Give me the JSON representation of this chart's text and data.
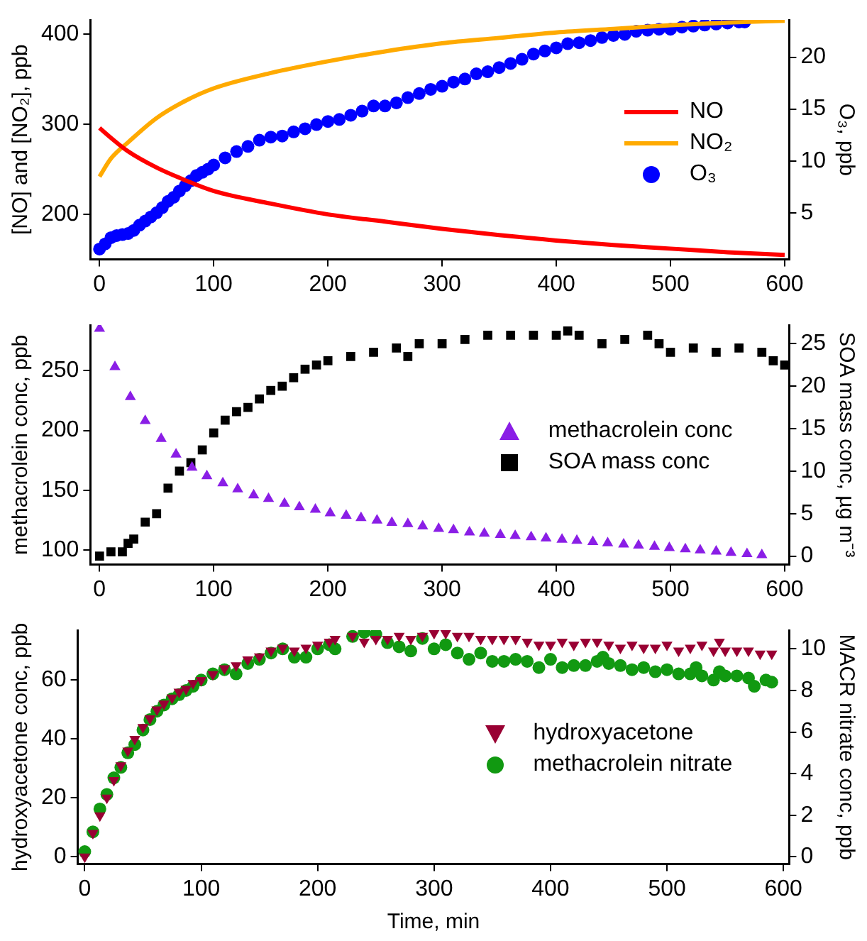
{
  "chart_data": [
    {
      "type": "line",
      "xlim": [
        -8,
        604
      ],
      "xticks": [
        0,
        100,
        200,
        300,
        400,
        500,
        600
      ],
      "ylim": [
        150,
        416
      ],
      "yticks": [
        200,
        300,
        400
      ],
      "y2lim": [
        0.5,
        23.6
      ],
      "y2ticks": [
        5,
        10,
        15,
        20
      ],
      "ylabel": "[NO] and [NO₂], ppb",
      "y2label": "O₃, ppb",
      "legend": "right",
      "series": [
        {
          "name": "NO",
          "marker": "none",
          "color": "#ff0000",
          "x": [
            0,
            10,
            25,
            50,
            75,
            100,
            150,
            200,
            250,
            300,
            350,
            400,
            450,
            500,
            550,
            600
          ],
          "values": [
            296,
            285,
            270,
            252,
            238,
            226,
            212,
            200,
            192,
            184,
            177,
            171,
            166,
            162,
            158,
            155
          ]
        },
        {
          "name": "NO₂",
          "marker": "none",
          "color": "#ffaa00",
          "x": [
            0,
            10,
            25,
            50,
            75,
            100,
            150,
            200,
            250,
            300,
            350,
            400,
            450,
            500,
            550,
            600
          ],
          "values": [
            242,
            262,
            280,
            307,
            326,
            340,
            357,
            370,
            381,
            390,
            396,
            402,
            406,
            410,
            413,
            415
          ]
        },
        {
          "name": "O₃",
          "type": "scatter",
          "marker": "circle",
          "axis": "y2",
          "color": "#0000ff",
          "x": [
            0,
            5,
            10,
            15,
            20,
            25,
            30,
            35,
            40,
            45,
            50,
            55,
            60,
            65,
            70,
            75,
            80,
            85,
            90,
            95,
            100,
            110,
            120,
            130,
            140,
            150,
            160,
            170,
            180,
            190,
            200,
            210,
            220,
            230,
            240,
            250,
            260,
            270,
            280,
            290,
            300,
            310,
            320,
            330,
            340,
            350,
            360,
            370,
            380,
            390,
            400,
            410,
            420,
            430,
            440,
            450,
            460,
            470,
            480,
            490,
            500,
            510,
            520,
            530,
            540,
            550,
            560,
            565
          ],
          "values": [
            1.5,
            2.0,
            2.6,
            2.8,
            2.9,
            3.0,
            3.3,
            3.8,
            4.2,
            4.6,
            5.0,
            5.5,
            6.1,
            6.5,
            7.1,
            7.6,
            8.1,
            8.6,
            8.9,
            9.2,
            9.6,
            10.3,
            10.9,
            11.4,
            12.0,
            12.3,
            12.4,
            12.8,
            13.1,
            13.5,
            13.8,
            14.0,
            14.4,
            14.8,
            15.3,
            15.3,
            15.6,
            16.1,
            16.5,
            16.9,
            17.2,
            17.6,
            17.9,
            18.4,
            18.6,
            19.0,
            19.4,
            19.8,
            20.3,
            20.6,
            20.9,
            21.3,
            21.4,
            21.6,
            21.9,
            22.1,
            22.2,
            22.5,
            22.6,
            22.7,
            22.7,
            22.9,
            23.0,
            23.1,
            23.2,
            23.3,
            23.4,
            23.4
          ]
        }
      ]
    },
    {
      "type": "scatter",
      "xlim": [
        -8,
        604
      ],
      "xticks": [
        0,
        100,
        200,
        300,
        400,
        500,
        600
      ],
      "ylim": [
        88,
        288
      ],
      "yticks": [
        100,
        150,
        200,
        250
      ],
      "y2lim": [
        -1,
        27.2
      ],
      "y2ticks": [
        0,
        5,
        10,
        15,
        20,
        25
      ],
      "ylabel": "methacrolein conc, ppb",
      "y2label": "SOA mass conc, µg m⁻³",
      "legend": "right",
      "series": [
        {
          "name": "methacrolein conc",
          "marker": "triangle",
          "color": "#8a1ee6",
          "x": [
            0,
            13.5,
            27,
            40,
            54,
            67,
            81,
            94,
            108,
            121,
            135,
            148,
            162,
            175,
            189,
            202,
            216,
            229,
            243,
            256,
            270,
            283,
            297,
            310,
            324,
            337,
            351,
            364,
            378,
            391,
            405,
            418,
            432,
            445,
            459,
            472,
            486,
            499,
            513,
            526,
            540,
            553,
            567,
            580
          ],
          "values": [
            285,
            253,
            228,
            208,
            193,
            180,
            169,
            162,
            156,
            151,
            146,
            143,
            139,
            136,
            134,
            131,
            129,
            127,
            125,
            123,
            122,
            120,
            118,
            117,
            115,
            114,
            113,
            112,
            111,
            110,
            109,
            108,
            107,
            106,
            105,
            104,
            103,
            102,
            101,
            100,
            99,
            98,
            97,
            96
          ]
        },
        {
          "name": "SOA mass conc",
          "marker": "square",
          "axis": "y2",
          "color": "#000000",
          "x": [
            0,
            10,
            20,
            25,
            30,
            40,
            50,
            60,
            70,
            80,
            90,
            100,
            110,
            120,
            130,
            140,
            150,
            160,
            170,
            180,
            190,
            200,
            220,
            240,
            260,
            270,
            280,
            300,
            320,
            340,
            360,
            380,
            400,
            410,
            420,
            440,
            460,
            480,
            490,
            500,
            520,
            540,
            560,
            580,
            590,
            600
          ],
          "values": [
            0,
            0.5,
            0.5,
            1.5,
            2,
            4,
            5,
            8,
            10,
            11,
            12.5,
            14.5,
            16,
            17,
            17.5,
            18.5,
            19.5,
            20,
            21,
            22,
            22.5,
            23,
            23.5,
            24,
            24.5,
            23.5,
            25,
            25,
            25.5,
            26,
            26,
            26,
            26,
            26.5,
            26,
            25,
            25.5,
            26,
            25,
            24,
            24.5,
            24,
            24.5,
            24,
            23,
            22.5
          ]
        }
      ]
    },
    {
      "type": "scatter",
      "xlim": [
        -6,
        605
      ],
      "xticks": [
        0,
        100,
        200,
        300,
        400,
        500,
        600
      ],
      "ylim": [
        -2.5,
        77
      ],
      "yticks": [
        0,
        20,
        40,
        60
      ],
      "y2lim": [
        -0.35,
        10.9
      ],
      "y2ticks": [
        0,
        2,
        4,
        6,
        8,
        10
      ],
      "xlabel": "Time, min",
      "ylabel": "hydroxyacetone conc, ppb",
      "y2label": "MACR nitrate conc, ppb",
      "legend": "right",
      "series": [
        {
          "name": "hydroxyacetone",
          "marker": "triangle-down",
          "color": "#990033",
          "x": [
            0,
            7,
            13,
            19,
            25,
            31,
            37,
            43,
            50,
            56,
            62,
            68,
            75,
            81,
            87,
            93,
            100,
            110,
            120,
            130,
            140,
            150,
            160,
            170,
            180,
            190,
            200,
            210,
            215,
            230,
            240,
            250,
            260,
            270,
            280,
            290,
            300,
            310,
            320,
            330,
            340,
            350,
            360,
            370,
            380,
            390,
            400,
            410,
            420,
            430,
            440,
            450,
            460,
            470,
            480,
            490,
            500,
            510,
            520,
            530,
            540,
            545,
            550,
            560,
            570,
            580,
            590
          ],
          "values": [
            0,
            8,
            14,
            20,
            26,
            31,
            36,
            40,
            44,
            47,
            50,
            52,
            54,
            56,
            57,
            59,
            60,
            62,
            64,
            65,
            67,
            68,
            70,
            71,
            70,
            71,
            72,
            73,
            74,
            75,
            73,
            74,
            74,
            75,
            74,
            75,
            76,
            76,
            75,
            75,
            74,
            74,
            74,
            74,
            73,
            72,
            72,
            73,
            72,
            73,
            73,
            72,
            71,
            72,
            71,
            71,
            72,
            70,
            71,
            72,
            70,
            73,
            70,
            70,
            70,
            69,
            69
          ]
        },
        {
          "name": "methacrolein nitrate",
          "marker": "circle",
          "axis": "y2",
          "color": "#119911",
          "x": [
            0,
            7,
            13,
            19,
            25,
            31,
            37,
            43,
            50,
            56,
            62,
            68,
            75,
            81,
            87,
            93,
            100,
            110,
            120,
            130,
            140,
            150,
            160,
            170,
            180,
            190,
            200,
            210,
            215,
            230,
            240,
            250,
            260,
            270,
            280,
            290,
            300,
            310,
            320,
            330,
            340,
            350,
            360,
            370,
            380,
            390,
            400,
            410,
            420,
            430,
            440,
            445,
            450,
            460,
            470,
            480,
            490,
            500,
            510,
            520,
            525,
            530,
            540,
            545,
            550,
            560,
            570,
            575,
            585,
            590
          ],
          "values": [
            0.25,
            1.2,
            2.3,
            3,
            3.8,
            4.3,
            5,
            5.4,
            6.1,
            6.6,
            7,
            7.3,
            7.6,
            7.8,
            8,
            8.2,
            8.5,
            8.8,
            9,
            8.8,
            9.3,
            9.5,
            9.8,
            10,
            9.6,
            9.6,
            10,
            10.2,
            10,
            10.6,
            10.8,
            10.7,
            10.3,
            10.1,
            9.9,
            10.5,
            10,
            10.2,
            9.8,
            9.5,
            9.8,
            9.4,
            9.4,
            9.5,
            9.4,
            9.1,
            9.5,
            9.1,
            9.2,
            9.2,
            9.4,
            9.6,
            9.3,
            9.2,
            9,
            9.1,
            8.9,
            9,
            8.8,
            8.8,
            9.1,
            8.7,
            8.5,
            8.9,
            8.7,
            8.7,
            8.6,
            8.2,
            8.5,
            8.4
          ]
        }
      ]
    }
  ]
}
